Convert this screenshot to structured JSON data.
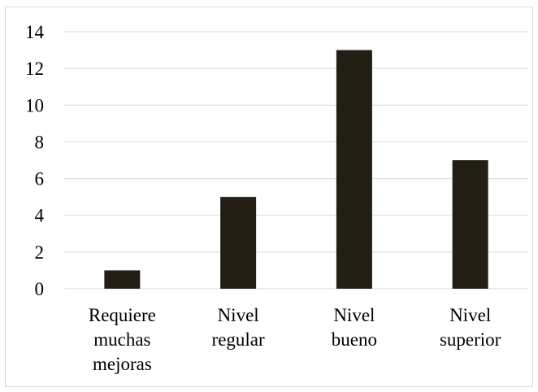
{
  "chart_data": {
    "type": "bar",
    "categories": [
      [
        "Requiere",
        "muchas",
        "mejoras"
      ],
      [
        "Nivel",
        "regular"
      ],
      [
        "Nivel",
        "bueno"
      ],
      [
        "Nivel",
        "superior"
      ]
    ],
    "values": [
      1,
      5,
      13,
      7
    ],
    "ylim": [
      0,
      14
    ],
    "yticks": [
      0,
      2,
      4,
      6,
      8,
      10,
      12,
      14
    ],
    "grid": true,
    "bar_color": "#221e14",
    "grid_color": "#d9d9d9"
  }
}
